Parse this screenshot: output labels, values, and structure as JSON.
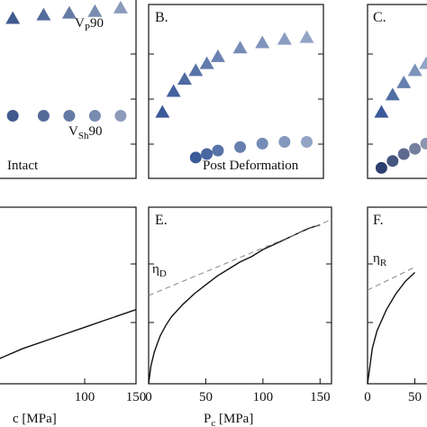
{
  "chart_data": [
    {
      "type": "scatter",
      "panel": "A",
      "label_top": "V",
      "label_top_sub": "P",
      "label_top_suffix": "90",
      "label_bottom": "V",
      "label_bottom_sub": "Sh",
      "label_bottom_suffix": "90",
      "annotation": "Intact",
      "series": [
        {
          "marker": "triangle",
          "color": "#2e4a82",
          "x": [
            5,
            30,
            60,
            85,
            110,
            135
          ],
          "y": [
            0.9,
            0.92,
            0.94,
            0.95,
            0.96,
            0.98
          ]
        },
        {
          "marker": "circle",
          "color": "#2e4a82",
          "x": [
            5,
            30,
            60,
            85,
            110,
            135
          ],
          "y": [
            0.36,
            0.36,
            0.36,
            0.36,
            0.36,
            0.36
          ]
        }
      ]
    },
    {
      "type": "scatter",
      "panel": "B",
      "panel_label": "B.",
      "annotation": "Post Deformation",
      "series": [
        {
          "marker": "triangle",
          "color": "#3a5a98",
          "x": [
            10,
            20,
            30,
            40,
            50,
            60,
            80,
            100,
            120,
            140
          ],
          "y": [
            0.38,
            0.5,
            0.57,
            0.62,
            0.66,
            0.7,
            0.75,
            0.78,
            0.8,
            0.81
          ]
        },
        {
          "marker": "circle",
          "color": "#3a5a98",
          "x": [
            40,
            50,
            60,
            80,
            100,
            120,
            140
          ],
          "y": [
            0.12,
            0.14,
            0.16,
            0.18,
            0.2,
            0.21,
            0.21
          ]
        }
      ]
    },
    {
      "type": "scatter",
      "panel": "C",
      "panel_label": "C.",
      "series": [
        {
          "marker": "triangle",
          "color": "#3a5a98",
          "x": [
            10,
            20,
            30,
            40,
            50
          ],
          "y": [
            0.38,
            0.48,
            0.55,
            0.62,
            0.66
          ]
        },
        {
          "marker": "circle",
          "color": "#2e3f70",
          "x": [
            10,
            20,
            30,
            40,
            50
          ],
          "y": [
            0.06,
            0.1,
            0.14,
            0.17,
            0.2
          ]
        }
      ]
    },
    {
      "type": "line",
      "panel": "D",
      "xlim": [
        0,
        150
      ],
      "xticks": [
        100,
        150
      ],
      "xlabel": "c [MPa]",
      "series": [
        {
          "style": "solid",
          "x": [
            0,
            20,
            40,
            60,
            80,
            100,
            120,
            150
          ],
          "y": [
            0.1,
            0.15,
            0.2,
            0.24,
            0.28,
            0.32,
            0.36,
            0.42
          ]
        }
      ]
    },
    {
      "type": "line",
      "panel": "E",
      "panel_label": "E.",
      "annotation": "η",
      "annotation_sub": "D",
      "xlim": [
        0,
        160
      ],
      "xticks": [
        0,
        50,
        100,
        150
      ],
      "xlabel_main": "P",
      "xlabel_sub": "c",
      "xlabel_unit": " [MPa]",
      "series": [
        {
          "style": "solid",
          "x": [
            0,
            2,
            5,
            10,
            15,
            20,
            30,
            40,
            50,
            60,
            70,
            80,
            90,
            100,
            110,
            120,
            130,
            140,
            150
          ],
          "y": [
            0.0,
            0.1,
            0.18,
            0.27,
            0.33,
            0.38,
            0.45,
            0.51,
            0.56,
            0.61,
            0.65,
            0.69,
            0.72,
            0.76,
            0.79,
            0.82,
            0.85,
            0.88,
            0.9
          ]
        },
        {
          "style": "dashed",
          "x": [
            0,
            160
          ],
          "y": [
            0.5,
            0.93
          ]
        }
      ]
    },
    {
      "type": "line",
      "panel": "F",
      "panel_label": "F.",
      "annotation": "η",
      "annotation_sub": "R",
      "xlim": [
        0,
        160
      ],
      "xticks": [
        0,
        50
      ],
      "series": [
        {
          "style": "solid",
          "x": [
            0,
            5,
            10,
            20,
            30,
            40,
            50
          ],
          "y": [
            0.0,
            0.2,
            0.3,
            0.42,
            0.51,
            0.58,
            0.63
          ]
        },
        {
          "style": "dashed",
          "x": [
            0,
            50
          ],
          "y": [
            0.53,
            0.66
          ]
        }
      ]
    }
  ]
}
